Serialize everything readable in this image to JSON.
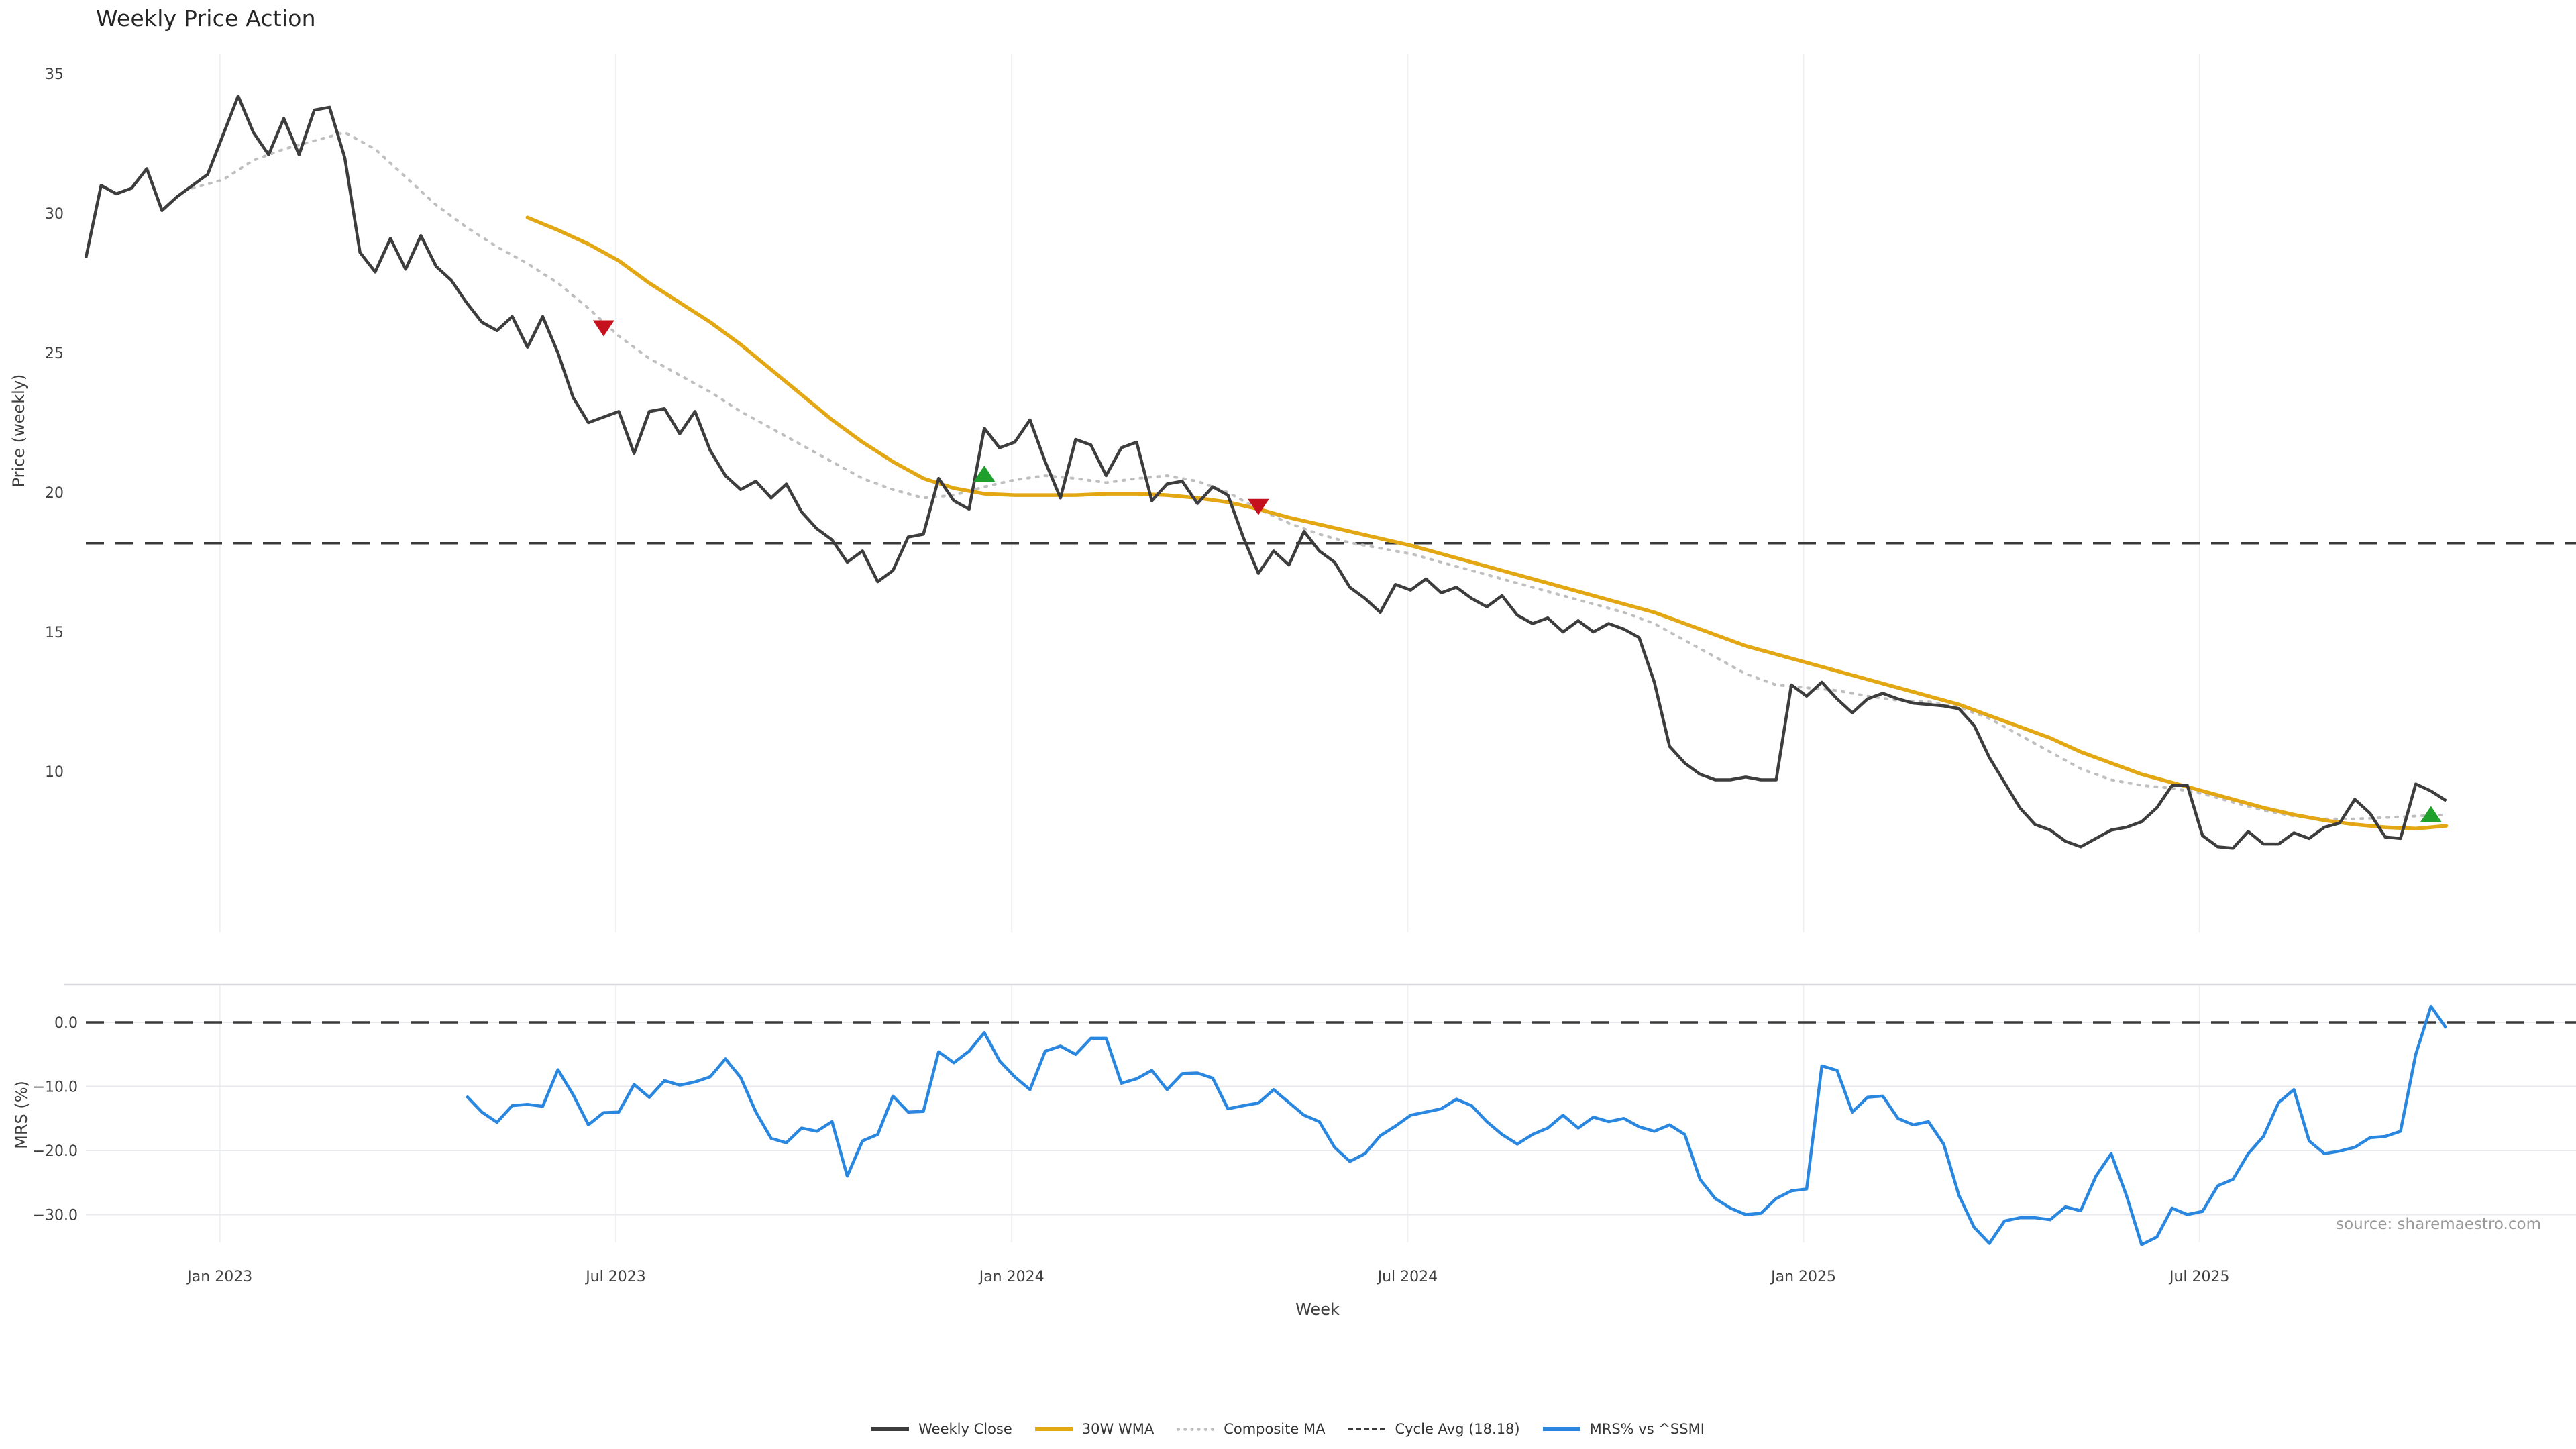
{
  "title": "Weekly Price Action",
  "source": "source: sharemaestro.com",
  "colors": {
    "weekly_close": "#3d3d3d",
    "wma_30w": "#e2a712",
    "composite_ma": "#bfbfbf",
    "cycle_avg": "#3a3a3a",
    "mrs": "#2a87e0",
    "buy_marker": "#1fa02c",
    "sell_marker": "#c5111d",
    "gridline_vertical": "#eef0f4",
    "gridline_horizontal": "#e8e9ed",
    "panel_spine": "#d8d8dd",
    "tick_text": "#3f3f3f"
  },
  "legend": [
    {
      "label": "Weekly Close",
      "swatch": "solid-dark"
    },
    {
      "label": "30W WMA",
      "swatch": "solid-gold"
    },
    {
      "label": "Composite MA",
      "swatch": "dotted"
    },
    {
      "label": "Cycle Avg (18.18)",
      "swatch": "dashed"
    },
    {
      "label": "MRS% vs ^SSMI",
      "swatch": "solid-blue"
    }
  ],
  "chart_data": {
    "type": "line",
    "x_axis": {
      "label": "Week",
      "unit": "weeks (t = weeks since first data point, early Nov 2022)",
      "ticks": [
        {
          "t": 8.8,
          "label": "Jan 2023"
        },
        {
          "t": 34.8,
          "label": "Jul 2023"
        },
        {
          "t": 60.8,
          "label": "Jan 2024"
        },
        {
          "t": 86.8,
          "label": "Jul 2024"
        },
        {
          "t": 112.8,
          "label": "Jan 2025"
        },
        {
          "t": 138.8,
          "label": "Jul 2025"
        }
      ]
    },
    "panels": [
      {
        "name": "price",
        "ylabel": "Price (weekly)",
        "ylim": [
          6,
          35.8
        ],
        "yticks": [
          {
            "v": 35,
            "label": "35"
          },
          {
            "v": 30,
            "label": "30"
          },
          {
            "v": 25,
            "label": "25"
          },
          {
            "v": 20,
            "label": "20"
          },
          {
            "v": 15,
            "label": "15"
          },
          {
            "v": 10,
            "label": "10"
          }
        ],
        "grid": "vertical-only"
      },
      {
        "name": "mrs",
        "ylabel": "MRS (%)",
        "ylim": [
          -36.5,
          6
        ],
        "yticks": [
          {
            "v": 0,
            "label": "0.0"
          },
          {
            "v": -10,
            "label": "−10.0"
          },
          {
            "v": -20,
            "label": "−20.0"
          },
          {
            "v": -30,
            "label": "−30.0"
          }
        ],
        "grid": "both"
      }
    ],
    "cycle_avg": 18.18,
    "series": {
      "weekly_close": {
        "panel": "price",
        "start": 0,
        "step": 1,
        "values": [
          28.4,
          31.0,
          30.7,
          30.9,
          31.6,
          30.1,
          30.6,
          31.0,
          31.4,
          32.8,
          34.2,
          32.9,
          32.1,
          33.4,
          32.1,
          33.7,
          33.8,
          32.0,
          28.6,
          27.9,
          29.1,
          28.0,
          29.2,
          28.1,
          27.6,
          26.8,
          26.1,
          25.8,
          26.3,
          25.2,
          26.3,
          25.0,
          23.4,
          22.5,
          22.7,
          22.9,
          21.4,
          22.9,
          23.0,
          22.1,
          22.9,
          21.5,
          20.6,
          20.1,
          20.4,
          19.8,
          20.3,
          19.3,
          18.7,
          18.3,
          17.5,
          17.9,
          16.8,
          17.2,
          18.4,
          18.5,
          20.5,
          19.7,
          19.4,
          22.3,
          21.6,
          21.8,
          22.6,
          21.1,
          19.8,
          21.9,
          21.7,
          20.6,
          21.6,
          21.8,
          19.7,
          20.3,
          20.4,
          19.6,
          20.2,
          19.9,
          18.4,
          17.1,
          17.9,
          17.4,
          18.6,
          17.9,
          17.5,
          16.6,
          16.2,
          15.7,
          16.7,
          16.5,
          16.9,
          16.4,
          16.6,
          16.2,
          15.9,
          16.3,
          15.6,
          15.3,
          15.5,
          15.0,
          15.4,
          15.0,
          15.3,
          15.1,
          14.8,
          13.2,
          10.9,
          10.3,
          9.9,
          9.7,
          9.7,
          9.8,
          9.7,
          9.7,
          13.1,
          12.7,
          13.2,
          12.6,
          12.1,
          12.6,
          12.8,
          12.6,
          12.45,
          12.4,
          12.35,
          12.25,
          11.65,
          10.5,
          9.6,
          8.7,
          8.1,
          7.9,
          7.5,
          7.3,
          7.6,
          7.9,
          8.0,
          8.2,
          8.7,
          9.5,
          9.5,
          7.7,
          7.3,
          7.25,
          7.85,
          7.4,
          7.4,
          7.8,
          7.6,
          8.0,
          8.15,
          9.0,
          8.5,
          7.65,
          7.6,
          9.55,
          9.3,
          8.95
        ]
      },
      "wma_30w": {
        "panel": "price",
        "start": 29,
        "step": 2,
        "values": [
          29.85,
          29.4,
          28.9,
          28.3,
          27.5,
          26.8,
          26.1,
          25.3,
          24.4,
          23.5,
          22.6,
          21.8,
          21.1,
          20.5,
          20.15,
          19.95,
          19.9,
          19.9,
          19.9,
          19.95,
          19.95,
          19.9,
          19.8,
          19.65,
          19.4,
          19.1,
          18.85,
          18.6,
          18.35,
          18.1,
          17.8,
          17.5,
          17.2,
          16.9,
          16.6,
          16.3,
          16.0,
          15.7,
          15.3,
          14.9,
          14.5,
          14.2,
          13.9,
          13.6,
          13.3,
          13.0,
          12.7,
          12.4,
          12.0,
          11.6,
          11.2,
          10.7,
          10.3,
          9.9,
          9.6,
          9.3,
          9.0,
          8.7,
          8.45,
          8.25,
          8.1,
          8.0,
          7.95,
          8.05
        ]
      },
      "composite_ma": {
        "panel": "price",
        "start": 7,
        "step": 2,
        "values": [
          30.9,
          31.2,
          31.9,
          32.3,
          32.6,
          32.9,
          32.3,
          31.3,
          30.3,
          29.5,
          28.8,
          28.2,
          27.5,
          26.6,
          25.6,
          24.8,
          24.2,
          23.6,
          22.9,
          22.3,
          21.7,
          21.1,
          20.5,
          20.1,
          19.8,
          19.9,
          20.2,
          20.45,
          20.6,
          20.5,
          20.35,
          20.5,
          20.6,
          20.4,
          20.0,
          19.4,
          18.9,
          18.5,
          18.2,
          18.0,
          17.8,
          17.5,
          17.2,
          16.9,
          16.6,
          16.3,
          16.0,
          15.7,
          15.3,
          14.7,
          14.1,
          13.5,
          13.1,
          13.0,
          12.9,
          12.7,
          12.55,
          12.5,
          12.3,
          11.9,
          11.3,
          10.7,
          10.1,
          9.7,
          9.5,
          9.4,
          9.2,
          8.9,
          8.6,
          8.4,
          8.3,
          8.3,
          8.35,
          8.4,
          8.45
        ]
      },
      "mrs": {
        "panel": "mrs",
        "start": 25,
        "step": 1,
        "values": [
          -11.5,
          -14.0,
          -15.6,
          -13.0,
          -12.8,
          -13.1,
          -7.4,
          -11.3,
          -16.0,
          -14.1,
          -14.0,
          -9.7,
          -11.7,
          -9.1,
          -9.8,
          -9.3,
          -8.5,
          -5.7,
          -8.6,
          -14.0,
          -18.1,
          -18.8,
          -16.5,
          -17.0,
          -15.5,
          -24.0,
          -18.5,
          -17.5,
          -11.5,
          -14.0,
          -13.9,
          -4.6,
          -6.3,
          -4.5,
          -1.6,
          -6.0,
          -8.5,
          -10.5,
          -4.5,
          -3.7,
          -5.0,
          -2.5,
          -2.5,
          -9.5,
          -8.8,
          -7.5,
          -10.5,
          -8.0,
          -7.9,
          -8.7,
          -13.5,
          -13.0,
          -12.6,
          -10.5,
          -12.5,
          -14.5,
          -15.5,
          -19.5,
          -21.7,
          -20.5,
          -17.7,
          -16.2,
          -14.5,
          -14.0,
          -13.5,
          -12.0,
          -13.0,
          -15.5,
          -17.5,
          -19.0,
          -17.5,
          -16.5,
          -14.5,
          -16.5,
          -14.8,
          -15.5,
          -15.0,
          -16.3,
          -17.0,
          -16.0,
          -17.5,
          -24.5,
          -27.5,
          -29.0,
          -30.0,
          -29.8,
          -27.5,
          -26.3,
          -26.0,
          -6.8,
          -7.5,
          -14.0,
          -11.7,
          -11.5,
          -15.0,
          -16.0,
          -15.5,
          -19.0,
          -27.0,
          -32.0,
          -34.5,
          -31.0,
          -30.5,
          -30.5,
          -30.8,
          -28.8,
          -29.4,
          -24.0,
          -20.5,
          -27.0,
          -34.7,
          -33.5,
          -29.0,
          -30.0,
          -29.5,
          -25.5,
          -24.5,
          -20.5,
          -17.8,
          -12.5,
          -10.5,
          -18.5,
          -20.5,
          -20.1,
          -19.5,
          -18.0,
          -17.8,
          -17.0,
          -5.0,
          2.5,
          -0.9
        ]
      }
    },
    "markers": [
      {
        "t": 34,
        "value": 25.9,
        "type": "sell"
      },
      {
        "t": 59,
        "value": 20.65,
        "type": "buy"
      },
      {
        "t": 77,
        "value": 19.5,
        "type": "sell"
      },
      {
        "t": 154,
        "value": 8.45,
        "type": "buy"
      }
    ]
  }
}
